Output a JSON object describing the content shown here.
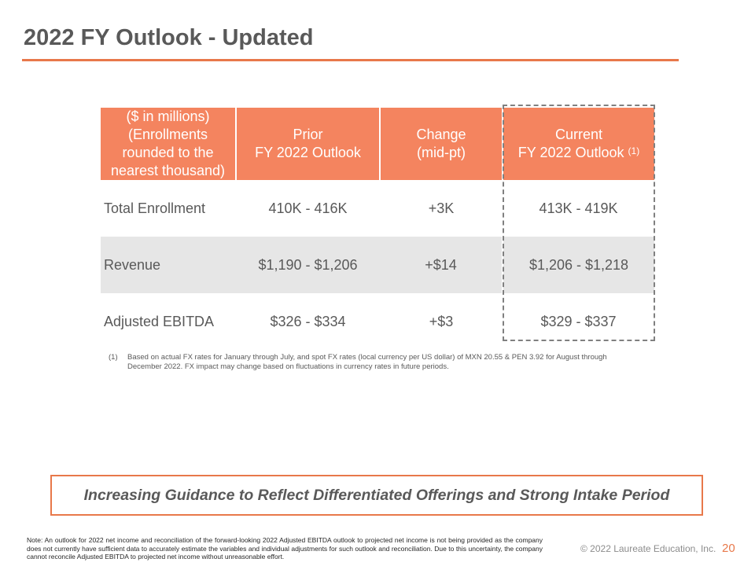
{
  "title": "2022 FY Outlook - Updated",
  "colors": {
    "accent": "#E8784A",
    "header_fill": "#F4845F",
    "shaded_row": "#E6E6E6",
    "text": "#595959",
    "dashed_highlight": "#808080"
  },
  "table": {
    "units_note": [
      "($ in millions)",
      "(Enrollments rounded to the",
      "nearest thousand)"
    ],
    "headers": {
      "prior": [
        "Prior",
        "FY 2022 Outlook"
      ],
      "change": [
        "Change",
        "(mid-pt)"
      ],
      "current": [
        "Current",
        "FY 2022 Outlook"
      ],
      "current_footnote_ref": "(1)"
    },
    "rows": [
      {
        "label": "Total Enrollment",
        "prior": "410K - 416K",
        "change": "+3K",
        "current": "413K - 419K"
      },
      {
        "label": "Revenue",
        "prior": "$1,190 - $1,206",
        "change": "+$14",
        "current": "$1,206 - $1,218"
      },
      {
        "label": "Adjusted EBITDA",
        "prior": "$326 - $334",
        "change": "+$3",
        "current": "$329 - $337"
      }
    ]
  },
  "footnote": {
    "number": "(1)",
    "text": "Based on actual FX rates for January through July, and spot FX rates (local currency per US dollar) of MXN 20.55 & PEN 3.92 for August through December 2022. FX impact may change based on fluctuations in currency rates in future periods."
  },
  "callout": "Increasing Guidance to Reflect Differentiated Offerings and Strong Intake Period",
  "note": "Note: An outlook for 2022 net income and reconciliation of the forward-looking 2022 Adjusted EBITDA outlook to projected net income is not being provided as the company does not currently have sufficient data to accurately estimate the variables and individual adjustments for such outlook and reconciliation.  Due to this uncertainty, the company cannot reconcile Adjusted EBITDA to projected net income without unreasonable effort.",
  "copyright": "© 2022 Laureate Education, Inc.",
  "page_number": "20"
}
